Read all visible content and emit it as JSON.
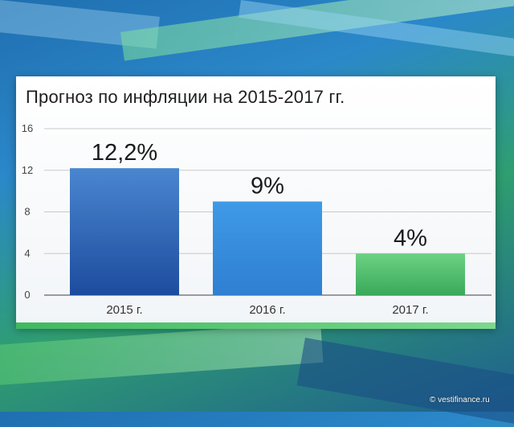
{
  "watermark": "© vestifinance.ru",
  "chart_data": {
    "type": "bar",
    "title": "Прогноз по инфляции на 2015-2017 гг.",
    "categories": [
      "2015 г.",
      "2016 г.",
      "2017 г."
    ],
    "values": [
      12.2,
      9,
      4
    ],
    "value_labels": [
      "12,2%",
      "9%",
      "4%"
    ],
    "yticks": [
      "0",
      "4",
      "8",
      "12",
      "16"
    ],
    "ylim": [
      0,
      16
    ],
    "grid": true,
    "xlabel": "",
    "ylabel": "",
    "colors": {
      "bar1_top": "#4a86d0",
      "bar1_bottom": "#1d4c9e",
      "bar2_top": "#3f9ae6",
      "bar2_bottom": "#2f7fd2",
      "bar3_top": "#6cd283",
      "bar3_bottom": "#3aa95a"
    }
  }
}
